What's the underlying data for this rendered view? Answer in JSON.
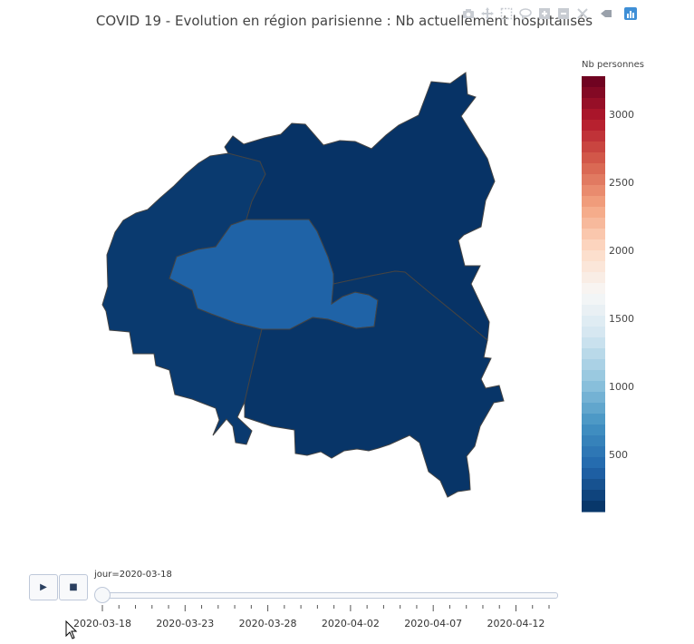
{
  "chart_data": {
    "type": "choropleth",
    "title": "COVID 19 - Evolution en région parisienne : Nb actuellement hospitalisés",
    "colorbar": {
      "title": "Nb personnes",
      "range": [
        80,
        3280
      ],
      "ticks": [
        500,
        1000,
        1500,
        2000,
        2500,
        3000
      ],
      "colorscale": "RdBu reversed"
    },
    "regions": [
      {
        "id": "hauts-de-seine",
        "value": 140
      },
      {
        "id": "paris",
        "value": 380
      },
      {
        "id": "seine-saint-denis",
        "value": 100
      },
      {
        "id": "val-de-marne",
        "value": 110
      }
    ],
    "slider": {
      "current_label": "jour=2020-03-18",
      "tick_labels": [
        "2020-03-18",
        "2020-03-23",
        "2020-03-28",
        "2020-04-02",
        "2020-04-07",
        "2020-04-12"
      ],
      "n_days": 28,
      "active_index": 0
    }
  },
  "controls": {
    "play_label": "▶",
    "stop_label": "■"
  },
  "modebar": [
    "camera-icon",
    "pan-icon",
    "box-select-icon",
    "lasso-icon",
    "zoom-in-icon",
    "zoom-out-icon",
    "autoscale-icon",
    "home-icon",
    "plotly-logo-icon"
  ]
}
